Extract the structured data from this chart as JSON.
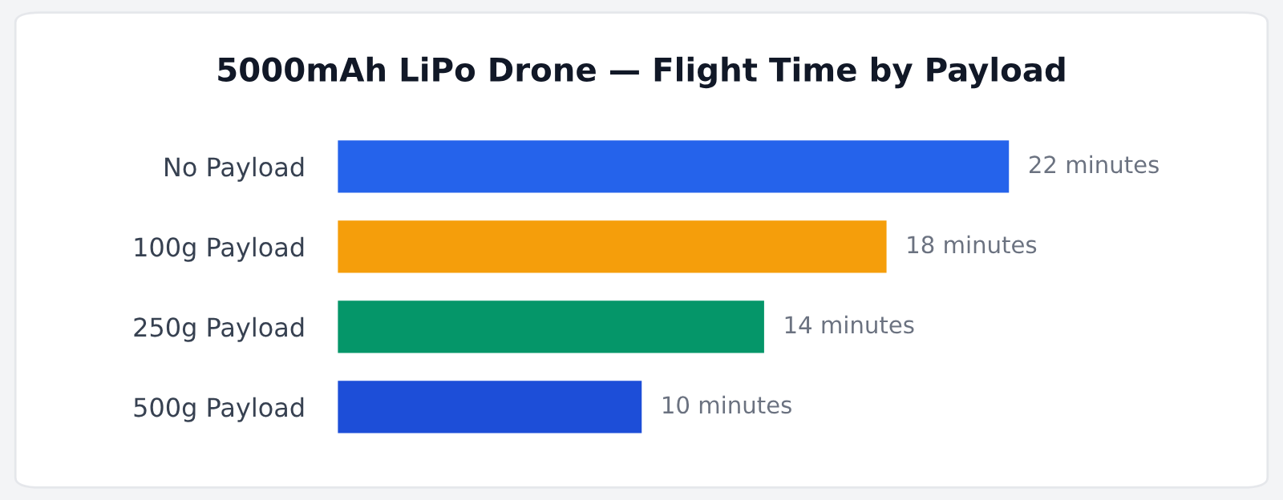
{
  "chart_data": {
    "type": "bar",
    "orientation": "horizontal",
    "title": "5000mAh LiPo Drone — Flight Time by Payload",
    "categories": [
      "No Payload",
      "100g Payload",
      "250g Payload",
      "500g Payload"
    ],
    "values": [
      22,
      18,
      14,
      10
    ],
    "colors": [
      "#2563eb",
      "#f59e0b",
      "#059669",
      "#1d4ed8"
    ],
    "value_labels": [
      "22 minutes",
      "18 minutes",
      "14 minutes",
      "10 minutes"
    ],
    "grid": false,
    "legend": false,
    "tick_labels": "y"
  }
}
